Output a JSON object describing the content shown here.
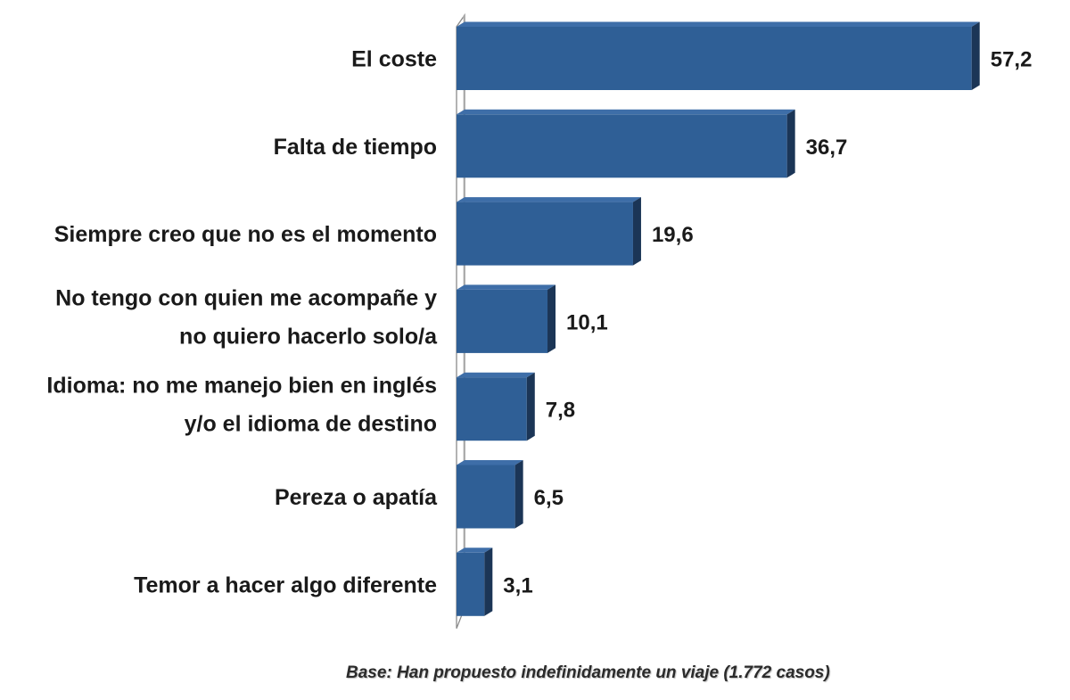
{
  "chart_data": {
    "type": "bar",
    "orientation": "horizontal",
    "categories": [
      [
        "El coste"
      ],
      [
        "Falta de tiempo"
      ],
      [
        "Siempre creo que no es el momento"
      ],
      [
        "No tengo con quien me acompañe y",
        "no quiero hacerlo solo/a"
      ],
      [
        "Idioma: no me manejo bien en inglés",
        "y/o el idioma de destino"
      ],
      [
        "Pereza o apatía"
      ],
      [
        "Temor a hacer algo diferente"
      ]
    ],
    "values": [
      57.2,
      36.7,
      19.6,
      10.1,
      7.8,
      6.5,
      3.1
    ],
    "value_labels": [
      "57,2",
      "36,7",
      "19,6",
      "10,1",
      "7,8",
      "6,5",
      "3,1"
    ],
    "xlim": [
      0,
      60
    ],
    "grid": false,
    "legend": "none",
    "bar_color": "#2f5f96",
    "bar_top_color": "#3e6ea8",
    "bar_side_color": "#1b3556"
  },
  "footnote": "Base: Han propuesto indefinidamente un viaje (1.772 casos)"
}
